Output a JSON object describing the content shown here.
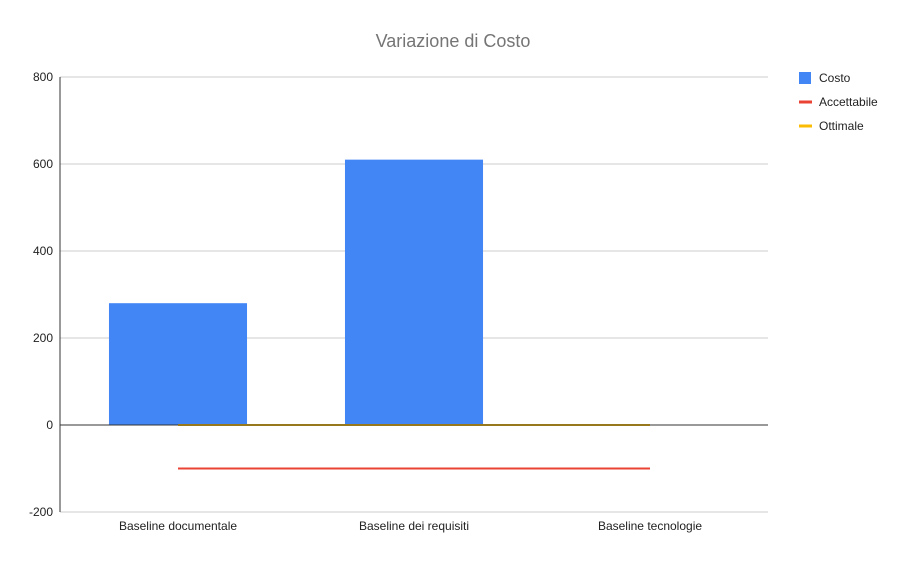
{
  "chart_data": {
    "type": "bar",
    "title": "Variazione di Costo",
    "xlabel": "",
    "ylabel": "",
    "categories": [
      "Baseline documentale",
      "Baseline dei requisiti",
      "Baseline tecnologie"
    ],
    "ylim": [
      -200,
      800
    ],
    "yticks": [
      -200,
      0,
      200,
      400,
      600,
      800
    ],
    "grid": true,
    "legend_position": "right",
    "series": [
      {
        "name": "Costo",
        "kind": "bar",
        "color": "#4285f4",
        "values": [
          280,
          610,
          0
        ]
      },
      {
        "name": "Accettabile",
        "kind": "line",
        "color": "#ea4335",
        "values": [
          -100,
          -100,
          -100
        ]
      },
      {
        "name": "Ottimale",
        "kind": "line",
        "color": "#fbbc04",
        "values": [
          0,
          0,
          0
        ]
      }
    ]
  }
}
